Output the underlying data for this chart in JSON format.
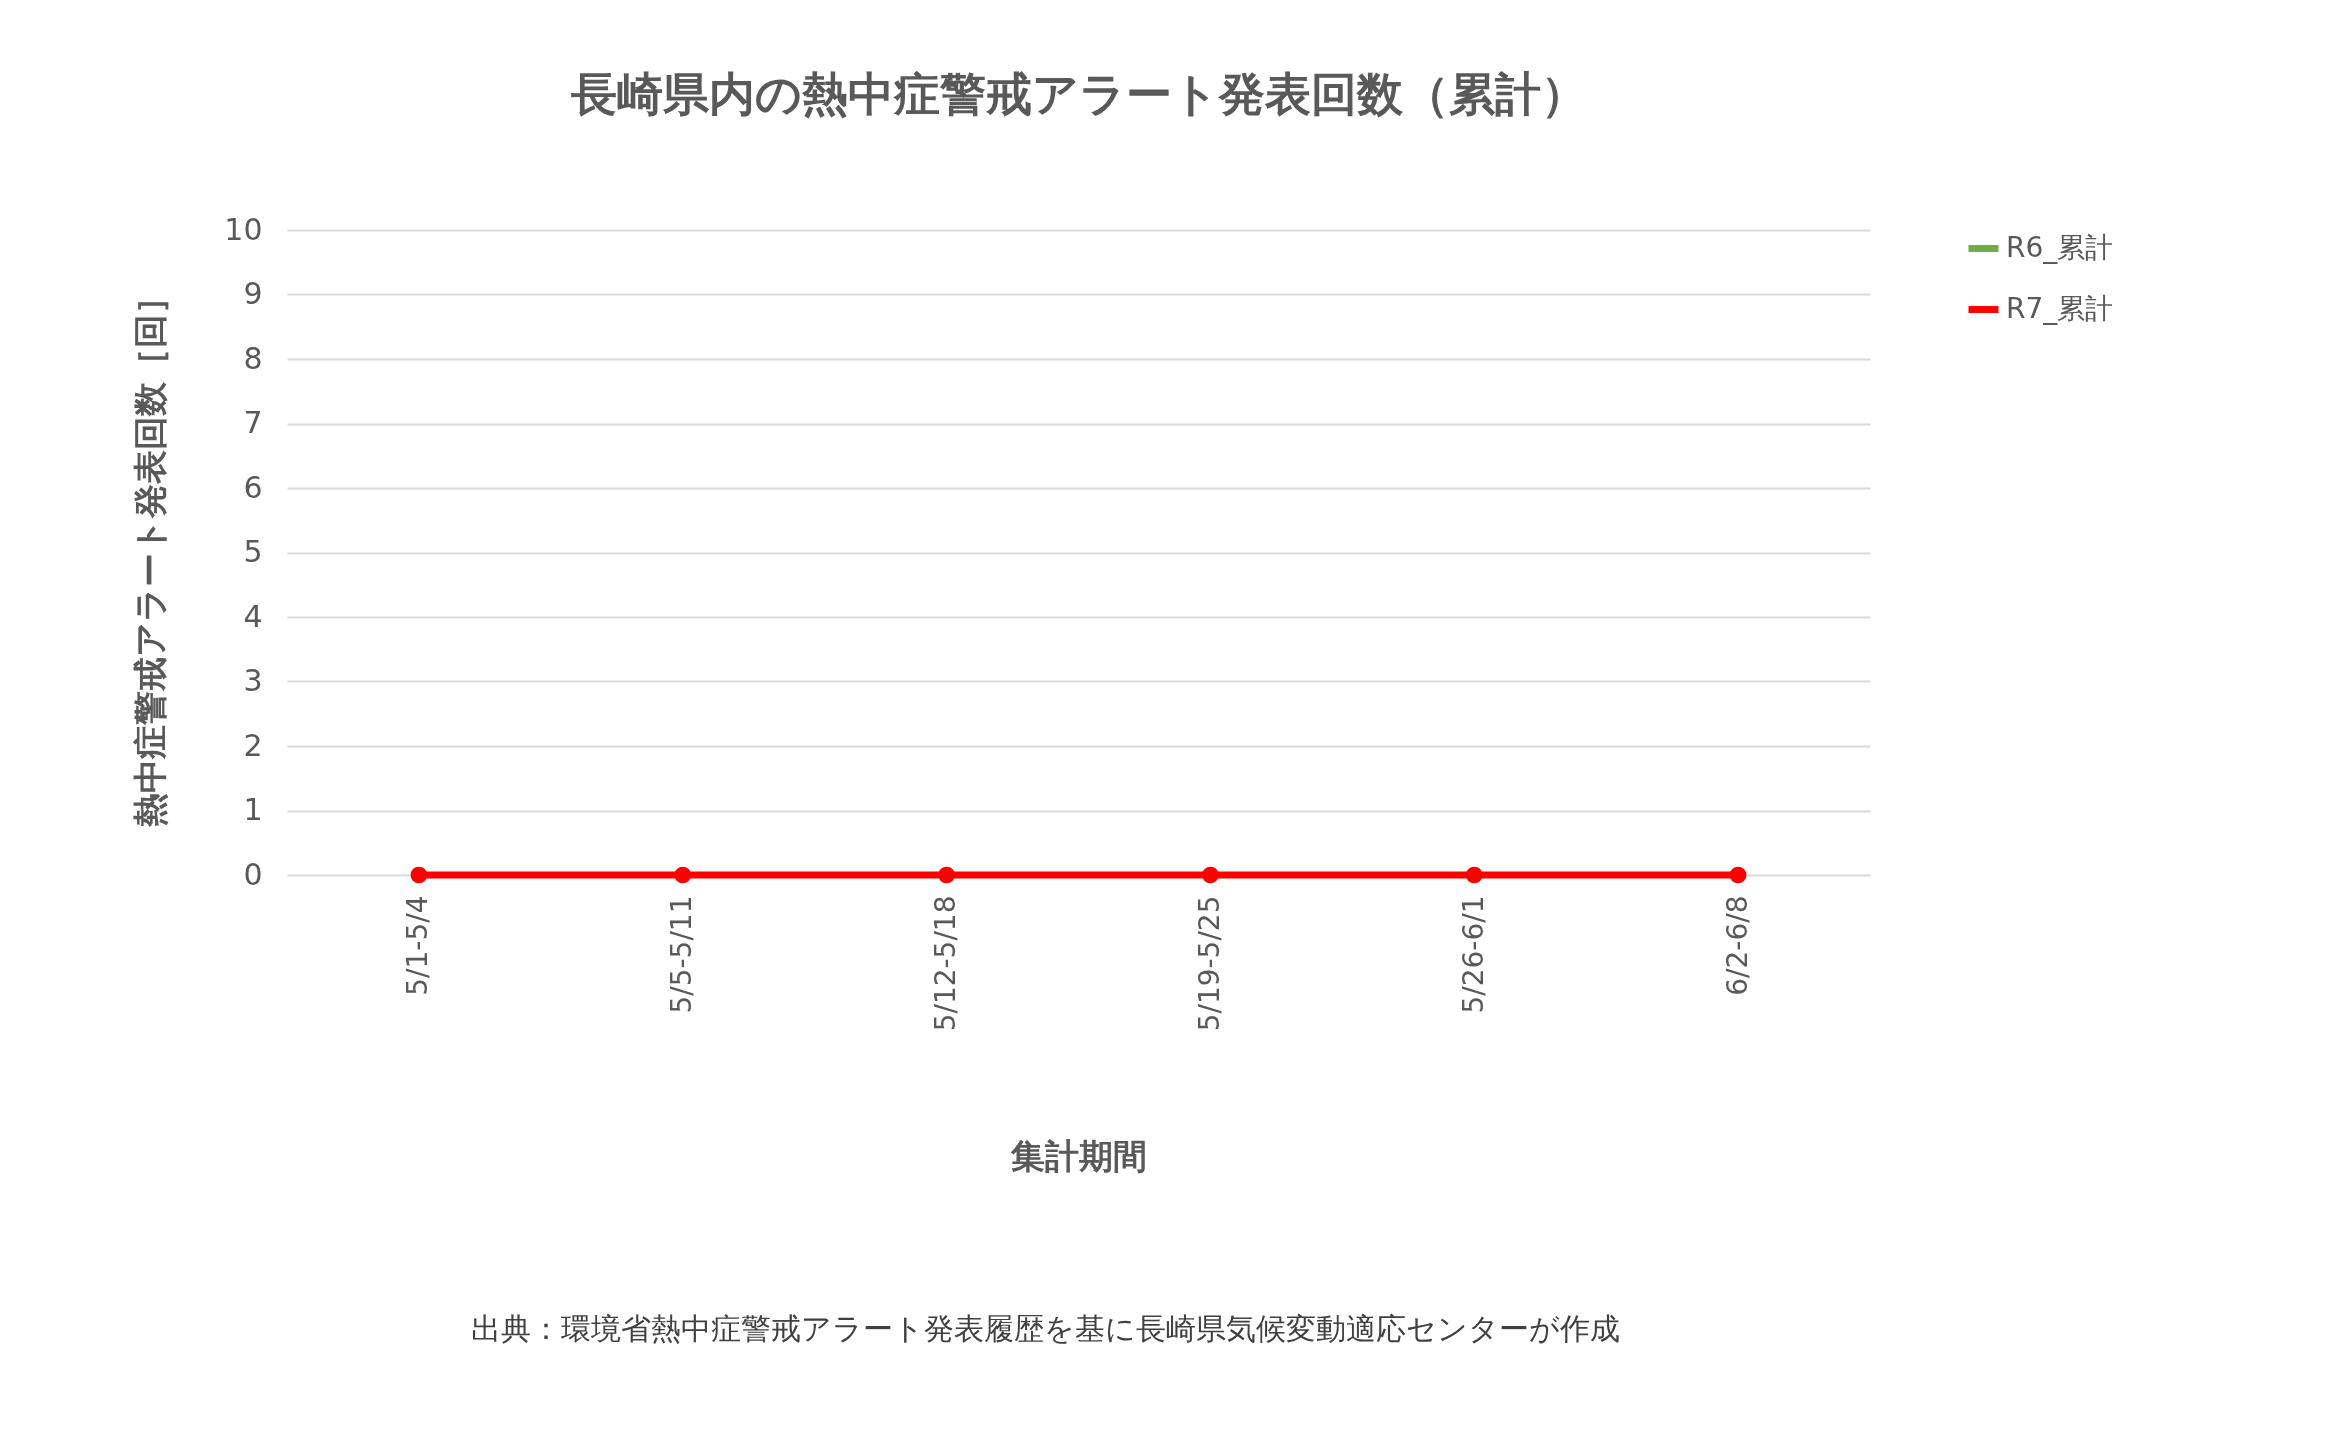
{
  "chart_data": {
    "type": "line",
    "title": "長崎県内の熱中症警戒アラート発表回数（累計）",
    "xlabel": "集計期間",
    "ylabel": "熱中症警戒アラート発表回数［回］",
    "categories": [
      "5/1-5/4",
      "5/5-5/11",
      "5/12-5/18",
      "5/19-5/25",
      "5/26-6/1",
      "6/2-6/8"
    ],
    "series": [
      {
        "name": "R6_累計",
        "color": "#70ad47",
        "values": [
          null,
          null,
          null,
          null,
          null,
          null
        ]
      },
      {
        "name": "R7_累計",
        "color": "#ff0000",
        "values": [
          0,
          0,
          0,
          0,
          0,
          0
        ]
      }
    ],
    "ylim": [
      0,
      10
    ],
    "yticks": [
      0,
      1,
      2,
      3,
      4,
      5,
      6,
      7,
      8,
      9,
      10
    ],
    "grid": "y",
    "legend": "right",
    "marker": "circle",
    "line_style": "solid",
    "annotations": [
      "出典：環境省熱中症警戒アラート発表履歴を基に長崎県気候変動適応センターが作成"
    ]
  }
}
